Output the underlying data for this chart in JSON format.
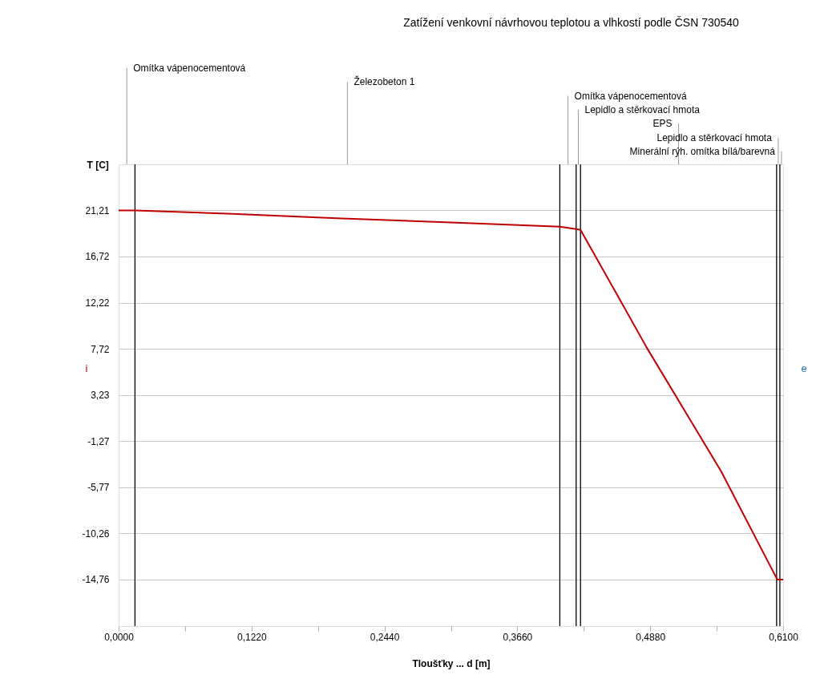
{
  "chart_data": {
    "type": "line",
    "title": "Zatížení venkovní návrhovou teplotou a vlhkostí podle ČSN 730540",
    "xlabel": "Tloušťky ... d [m]",
    "ylabel": "T [C]",
    "x": [
      0,
      0.015,
      0.1,
      0.2,
      0.3,
      0.405,
      0.42,
      0.424,
      0.457,
      0.485,
      0.553,
      0.6046,
      0.61
    ],
    "series": [
      {
        "color": "#c00000",
        "values": [
          21.21,
          21.2,
          20.9,
          20.45,
          20.05,
          19.63,
          19.4,
          19.32,
          13.1,
          7.8,
          -4.2,
          -14.76,
          -14.76
        ]
      }
    ],
    "xlim": [
      0,
      0.61
    ],
    "ylim": [
      -19.3,
      25.7
    ],
    "xticks": [
      {
        "value": 0,
        "label": "0,0000"
      },
      {
        "value": 0.061,
        "label": null
      },
      {
        "value": 0.122,
        "label": "0,1220"
      },
      {
        "value": 0.183,
        "label": null
      },
      {
        "value": 0.244,
        "label": "0,2440"
      },
      {
        "value": 0.305,
        "label": null
      },
      {
        "value": 0.366,
        "label": "0,3660"
      },
      {
        "value": 0.427,
        "label": null
      },
      {
        "value": 0.488,
        "label": "0,4880"
      },
      {
        "value": 0.549,
        "label": null
      },
      {
        "value": 0.61,
        "label": "0,6100"
      }
    ],
    "yticks": [
      {
        "value": 21.21,
        "label": "21,21"
      },
      {
        "value": 16.72,
        "label": "16,72"
      },
      {
        "value": 12.22,
        "label": "12,22"
      },
      {
        "value": 7.72,
        "label": "7,72"
      },
      {
        "value": 3.23,
        "label": "3,23"
      },
      {
        "value": -1.27,
        "label": "-1,27"
      },
      {
        "value": -5.77,
        "label": "-5,77"
      },
      {
        "value": -10.26,
        "label": "-10,26"
      },
      {
        "value": -14.76,
        "label": "-14,76"
      }
    ],
    "grid": "y",
    "ref_lines": [
      {
        "axis": "x",
        "value": 0.015,
        "color": "#000000"
      },
      {
        "axis": "x",
        "value": 0.405,
        "color": "#000000"
      },
      {
        "axis": "x",
        "value": 0.42,
        "color": "#000000"
      },
      {
        "axis": "x",
        "value": 0.424,
        "color": "#000000"
      },
      {
        "axis": "x",
        "value": 0.604,
        "color": "#000000"
      },
      {
        "axis": "x",
        "value": 0.607,
        "color": "#000000"
      }
    ],
    "line_style": "solid",
    "annotations": [
      "Omítka vápenocementová",
      "Železobeton 1",
      "Omítka vápenocementová",
      "Lepidlo a stěrkovací hmota",
      "EPS",
      "Lepidlo a stěrkovací hmota",
      "Minerální rýh. omítka bílá/barevná",
      "i",
      "e"
    ]
  }
}
